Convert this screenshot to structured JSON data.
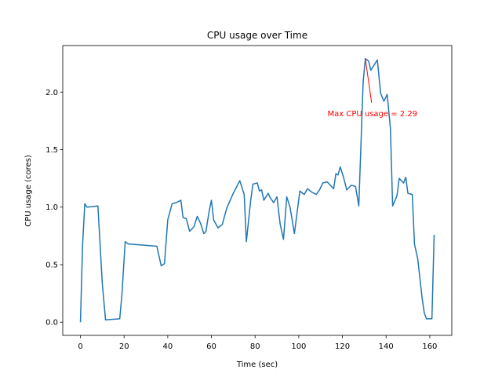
{
  "chart_data": {
    "type": "line",
    "title": "CPU usage over Time",
    "xlabel": "Time (sec)",
    "ylabel": "CPU usage (cores)",
    "x": [
      0,
      1,
      2,
      3,
      8,
      10,
      11.5,
      18,
      19,
      20.5,
      22,
      35,
      37,
      38.5,
      40,
      42,
      44,
      46,
      47,
      48.5,
      50,
      52,
      53.5,
      55,
      56.5,
      57.5,
      59,
      60,
      61,
      63,
      65,
      67,
      70,
      73,
      75,
      76,
      78,
      79,
      81,
      82,
      83,
      84,
      86,
      87,
      88.5,
      90,
      91.5,
      93,
      94.5,
      96,
      98,
      100.5,
      102.5,
      104,
      106,
      108,
      109.5,
      111,
      113,
      115,
      116,
      117,
      118,
      119,
      120.5,
      122,
      124,
      126,
      127.5,
      129.5,
      130.5,
      132,
      133,
      136,
      137.5,
      139,
      140.5,
      142,
      143,
      145,
      146,
      148,
      149,
      150,
      152,
      153,
      154.5,
      156.5,
      157.5,
      158.5,
      161,
      162
    ],
    "series": [
      {
        "name": "CPU usage",
        "color": "#1f77b4",
        "values": [
          0,
          0.68,
          1.03,
          1.0,
          1.01,
          0.34,
          0.02,
          0.03,
          0.24,
          0.7,
          0.68,
          0.66,
          0.49,
          0.51,
          0.89,
          1.03,
          1.04,
          1.06,
          0.91,
          0.9,
          0.79,
          0.83,
          0.92,
          0.86,
          0.77,
          0.79,
          0.97,
          1.06,
          0.89,
          0.82,
          0.85,
          0.99,
          1.12,
          1.23,
          1.11,
          0.7,
          1.06,
          1.2,
          1.21,
          1.14,
          1.15,
          1.06,
          1.12,
          1.08,
          1.04,
          1.09,
          0.85,
          0.72,
          1.09,
          1.0,
          0.77,
          1.14,
          1.11,
          1.16,
          1.13,
          1.11,
          1.15,
          1.21,
          1.22,
          1.18,
          1.16,
          1.29,
          1.28,
          1.35,
          1.26,
          1.15,
          1.19,
          1.18,
          1.01,
          2.09,
          2.29,
          2.27,
          2.19,
          2.28,
          1.99,
          1.92,
          1.98,
          1.68,
          1.01,
          1.1,
          1.25,
          1.21,
          1.26,
          1.12,
          1.11,
          0.68,
          0.55,
          0.21,
          0.08,
          0.03,
          0.03,
          0.76
        ]
      }
    ],
    "xlim": [
      -8.1,
      170.1
    ],
    "ylim": [
      -0.1145,
      2.4045
    ],
    "xticks": [
      0,
      20,
      40,
      60,
      80,
      100,
      120,
      140,
      160
    ],
    "yticks": [
      {
        "value": 0,
        "label": "0.0"
      },
      0.5,
      {
        "value": 1,
        "label": "1.0"
      },
      1.5,
      {
        "value": 2,
        "label": "2.0"
      }
    ],
    "annotation": {
      "text": "Max CPU usage = 2.29",
      "x": 130.5,
      "y": 2.29,
      "color": "#ff0000"
    }
  }
}
